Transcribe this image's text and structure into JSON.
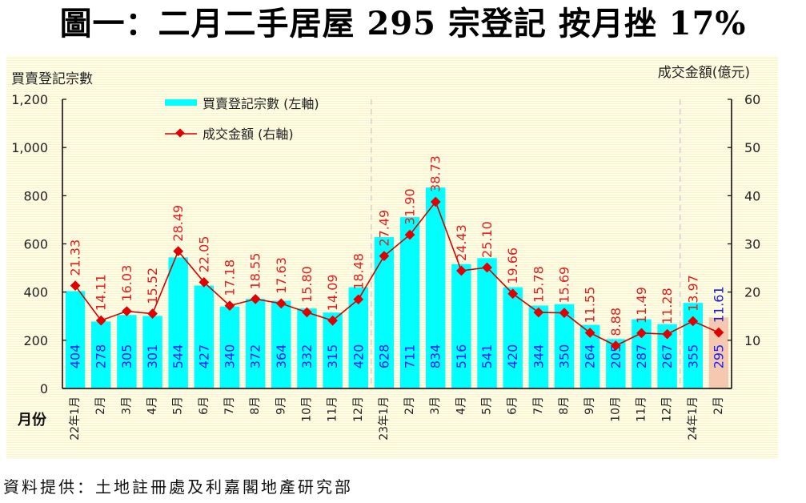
{
  "title": "圖一：二月二手居屋 295 宗登記  按月挫 17%",
  "footer": "資料提供：土地註冊處及利嘉閣地產研究部",
  "colors": {
    "bar": "#00ffff",
    "bar_latest": "#f5c9b0",
    "line": "#d40000",
    "bar_label": "#1a1aff",
    "line_label": "#e02020",
    "line_label_latest": "#1a1acc"
  },
  "chart_data": {
    "type": "bar+line",
    "title": "圖一：二月二手居屋 295 宗登記  按月挫 17%",
    "xlabel": "月份",
    "ylabel_left": "買賣登記宗數",
    "ylabel_right": "成交金額(億元)",
    "ylim_left": [
      0,
      1200
    ],
    "ylim_right": [
      0,
      60
    ],
    "yticks_left": [
      "0",
      "200",
      "400",
      "600",
      "800",
      "1,000",
      "1,200"
    ],
    "yticks_right": [
      "10",
      "20",
      "30",
      "40",
      "50",
      "60"
    ],
    "categories": [
      "22年1月",
      "2月",
      "3月",
      "4月",
      "5月",
      "6月",
      "7月",
      "8月",
      "9月",
      "10月",
      "11月",
      "12月",
      "23年1月",
      "2月",
      "3月",
      "4月",
      "5月",
      "6月",
      "7月",
      "8月",
      "9月",
      "10月",
      "11月",
      "12月",
      "24年1月",
      "2月"
    ],
    "legend": {
      "placement": "top-left",
      "bar": "買賣登記宗數 (左軸)",
      "line": "成交金額 (右軸)"
    },
    "series": [
      {
        "name": "買賣登記宗數 (左軸)",
        "type": "bar",
        "axis": "left",
        "values": [
          404,
          278,
          305,
          301,
          544,
          427,
          340,
          372,
          364,
          332,
          315,
          420,
          628,
          711,
          834,
          516,
          541,
          420,
          344,
          350,
          264,
          205,
          287,
          267,
          355,
          295
        ]
      },
      {
        "name": "成交金額 (右軸)",
        "type": "line",
        "axis": "right",
        "values": [
          21.33,
          14.11,
          16.03,
          15.52,
          28.49,
          22.05,
          17.18,
          18.55,
          17.63,
          15.8,
          14.09,
          18.48,
          27.49,
          31.9,
          38.73,
          24.43,
          25.1,
          19.66,
          15.78,
          15.69,
          11.55,
          8.88,
          11.49,
          11.28,
          13.97,
          11.61
        ],
        "labels": [
          "21.33",
          "14.11",
          "16.03",
          "15.52",
          "28.49",
          "22.05",
          "17.18",
          "18.55",
          "17.63",
          "15.80",
          "14.09",
          "18.48",
          "27.49",
          "31.90",
          "38.73",
          "24.43",
          "25.10",
          "19.66",
          "15.78",
          "15.69",
          "11.55",
          "8.88",
          "11.49",
          "11.28",
          "13.97",
          "11.61"
        ]
      }
    ],
    "year_separators_after_index": [
      11,
      23
    ],
    "grid": false
  }
}
